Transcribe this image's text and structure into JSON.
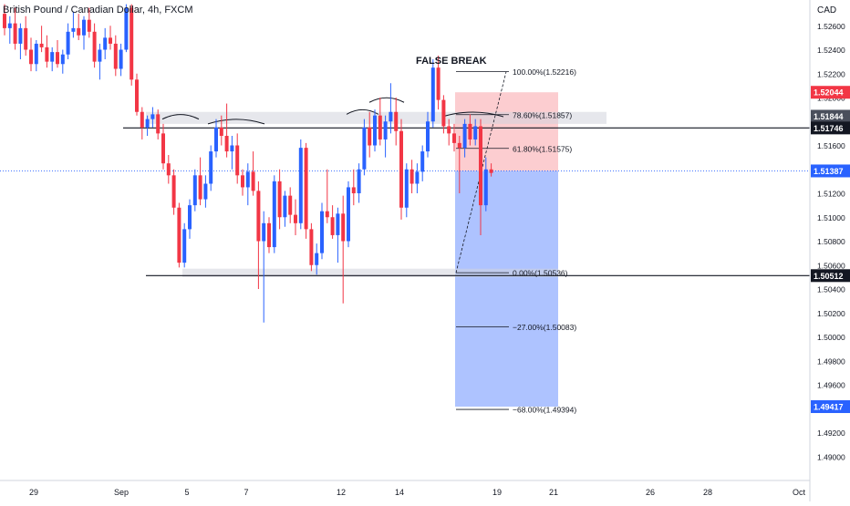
{
  "header": {
    "symbol_title": "British Pound / Canadian Dollar, 4h, FXCM",
    "currency": "CAD"
  },
  "annotations": {
    "false_break": "FALSE BREAK"
  },
  "chart_data": {
    "type": "candlestick",
    "title": "British Pound / Canadian Dollar, 4h, FXCM",
    "ylim": [
      1.488,
      1.528
    ],
    "y_ticks": [
      "1.52600",
      "1.52400",
      "1.52200",
      "1.52000",
      "1.51800",
      "1.51600",
      "1.51200",
      "1.51000",
      "1.50800",
      "1.50600",
      "1.50400",
      "1.50200",
      "1.50000",
      "1.49800",
      "1.49600",
      "1.49200",
      "1.49000"
    ],
    "x_ticks": [
      "29",
      "Sep",
      "5",
      "7",
      "12",
      "14",
      "19",
      "21",
      "26",
      "28",
      "Oct"
    ],
    "price_badges": [
      {
        "label": "1.52044",
        "color": "#f23645"
      },
      {
        "label": "1.51844",
        "color": "#4a4f5c"
      },
      {
        "label": "1.51746",
        "color": "#131722"
      },
      {
        "label": "1.51387",
        "color": "#2962ff"
      },
      {
        "label": "1.50512",
        "color": "#131722"
      },
      {
        "label": "1.49417",
        "color": "#2962ff"
      }
    ],
    "horizontal_levels": [
      1.51746,
      1.50512
    ],
    "zones": [
      {
        "name": "resistance-zone",
        "from": 1.5178,
        "to": 1.5188
      },
      {
        "name": "support-zone",
        "from": 1.505,
        "to": 1.5057
      }
    ],
    "fibonacci": [
      {
        "label": "100.00%(1.52216)",
        "price": 1.52216
      },
      {
        "label": "78.60%(1.51857)",
        "price": 1.51857
      },
      {
        "label": "61.80%(1.51575)",
        "price": 1.51575
      },
      {
        "label": "0.00%(1.50536)",
        "price": 1.50536
      },
      {
        "label": "−27.00%(1.50083)",
        "price": 1.50083
      },
      {
        "label": "−68.00%(1.49394)",
        "price": 1.49394
      }
    ],
    "position": {
      "type": "short",
      "entry": 1.51387,
      "stop": 1.52044,
      "target": 1.49417
    },
    "candles": [
      [
        1.527,
        1.5278,
        1.5252,
        1.5258
      ],
      [
        1.5258,
        1.5268,
        1.5245,
        1.5262
      ],
      [
        1.5262,
        1.5275,
        1.524,
        1.5245
      ],
      [
        1.5245,
        1.5262,
        1.5232,
        1.5258
      ],
      [
        1.5258,
        1.5268,
        1.5235,
        1.524
      ],
      [
        1.524,
        1.525,
        1.5222,
        1.5228
      ],
      [
        1.5228,
        1.5248,
        1.5222,
        1.5245
      ],
      [
        1.5245,
        1.526,
        1.5238,
        1.5242
      ],
      [
        1.5242,
        1.5252,
        1.5225,
        1.523
      ],
      [
        1.523,
        1.5242,
        1.5222,
        1.5238
      ],
      [
        1.5238,
        1.5248,
        1.5225,
        1.5228
      ],
      [
        1.5228,
        1.524,
        1.522,
        1.5236
      ],
      [
        1.5236,
        1.5262,
        1.5232,
        1.5255
      ],
      [
        1.5255,
        1.5272,
        1.525,
        1.5258
      ],
      [
        1.5258,
        1.527,
        1.5248,
        1.5252
      ],
      [
        1.5252,
        1.5268,
        1.524,
        1.5265
      ],
      [
        1.5265,
        1.5275,
        1.525,
        1.5255
      ],
      [
        1.5255,
        1.5262,
        1.5225,
        1.523
      ],
      [
        1.523,
        1.5245,
        1.5215,
        1.524
      ],
      [
        1.524,
        1.5258,
        1.5232,
        1.525
      ],
      [
        1.525,
        1.526,
        1.524,
        1.5245
      ],
      [
        1.5245,
        1.5252,
        1.5218,
        1.5224
      ],
      [
        1.5224,
        1.5245,
        1.5218,
        1.524
      ],
      [
        1.524,
        1.5278,
        1.5238,
        1.5275
      ],
      [
        1.5275,
        1.5278,
        1.521,
        1.5215
      ],
      [
        1.5215,
        1.522,
        1.5185,
        1.5188
      ],
      [
        1.5188,
        1.5192,
        1.5165,
        1.5175
      ],
      [
        1.5175,
        1.5185,
        1.5168,
        1.5182
      ],
      [
        1.5182,
        1.5192,
        1.5175,
        1.5186
      ],
      [
        1.5186,
        1.519,
        1.5165,
        1.517
      ],
      [
        1.517,
        1.5178,
        1.514,
        1.5145
      ],
      [
        1.5145,
        1.5152,
        1.5128,
        1.5135
      ],
      [
        1.5135,
        1.514,
        1.5102,
        1.5108
      ],
      [
        1.5108,
        1.5112,
        1.5058,
        1.5062
      ],
      [
        1.5062,
        1.5095,
        1.5058,
        1.509
      ],
      [
        1.509,
        1.5115,
        1.5082,
        1.511
      ],
      [
        1.511,
        1.514,
        1.5105,
        1.5135
      ],
      [
        1.5135,
        1.515,
        1.511,
        1.5115
      ],
      [
        1.5115,
        1.5135,
        1.5108,
        1.5128
      ],
      [
        1.5128,
        1.516,
        1.5122,
        1.5155
      ],
      [
        1.5155,
        1.5182,
        1.515,
        1.5175
      ],
      [
        1.5175,
        1.5185,
        1.516,
        1.5168
      ],
      [
        1.5168,
        1.5195,
        1.515,
        1.5155
      ],
      [
        1.5155,
        1.5168,
        1.514,
        1.516
      ],
      [
        1.516,
        1.517,
        1.5128,
        1.5135
      ],
      [
        1.5135,
        1.514,
        1.5118,
        1.5125
      ],
      [
        1.5125,
        1.5145,
        1.511,
        1.5138
      ],
      [
        1.5138,
        1.5155,
        1.5118,
        1.5122
      ],
      [
        1.5122,
        1.513,
        1.504,
        1.508
      ],
      [
        1.508,
        1.5105,
        1.5012,
        1.5095
      ],
      [
        1.5095,
        1.51,
        1.507,
        1.5075
      ],
      [
        1.5075,
        1.5135,
        1.507,
        1.513
      ],
      [
        1.513,
        1.514,
        1.509,
        1.51
      ],
      [
        1.51,
        1.5122,
        1.5092,
        1.5118
      ],
      [
        1.5118,
        1.5125,
        1.5095,
        1.5102
      ],
      [
        1.5102,
        1.5115,
        1.5085,
        1.5095
      ],
      [
        1.5095,
        1.5165,
        1.509,
        1.5158
      ],
      [
        1.5158,
        1.5162,
        1.5082,
        1.509
      ],
      [
        1.509,
        1.5095,
        1.5055,
        1.506
      ],
      [
        1.506,
        1.5078,
        1.5052,
        1.507
      ],
      [
        1.507,
        1.5112,
        1.5065,
        1.5105
      ],
      [
        1.5105,
        1.514,
        1.5095,
        1.51
      ],
      [
        1.51,
        1.511,
        1.5082,
        1.5085
      ],
      [
        1.5085,
        1.5108,
        1.5062,
        1.5103
      ],
      [
        1.5103,
        1.5118,
        1.5028,
        1.508
      ],
      [
        1.508,
        1.513,
        1.5075,
        1.5125
      ],
      [
        1.5125,
        1.514,
        1.511,
        1.512
      ],
      [
        1.512,
        1.5145,
        1.5112,
        1.514
      ],
      [
        1.514,
        1.5182,
        1.5135,
        1.5175
      ],
      [
        1.5175,
        1.5188,
        1.515,
        1.516
      ],
      [
        1.516,
        1.519,
        1.5155,
        1.5185
      ],
      [
        1.5185,
        1.52,
        1.516,
        1.5165
      ],
      [
        1.5165,
        1.5185,
        1.515,
        1.518
      ],
      [
        1.518,
        1.5212,
        1.517,
        1.5188
      ],
      [
        1.5188,
        1.52,
        1.516,
        1.5172
      ],
      [
        1.5172,
        1.5182,
        1.5098,
        1.5108
      ],
      [
        1.5108,
        1.5145,
        1.51,
        1.514
      ],
      [
        1.514,
        1.5148,
        1.512,
        1.5128
      ],
      [
        1.5128,
        1.5145,
        1.512,
        1.5138
      ],
      [
        1.5138,
        1.516,
        1.513,
        1.5155
      ],
      [
        1.5155,
        1.5188,
        1.515,
        1.518
      ],
      [
        1.518,
        1.5232,
        1.5175,
        1.5225
      ],
      [
        1.5225,
        1.5235,
        1.519,
        1.5198
      ],
      [
        1.5198,
        1.5202,
        1.517,
        1.5176
      ],
      [
        1.5176,
        1.5182,
        1.516,
        1.517
      ],
      [
        1.517,
        1.5178,
        1.5155,
        1.5162
      ],
      [
        1.5162,
        1.5168,
        1.512,
        1.5158
      ],
      [
        1.5158,
        1.5182,
        1.515,
        1.5178
      ],
      [
        1.5178,
        1.5186,
        1.516,
        1.5165
      ],
      [
        1.5165,
        1.5182,
        1.516,
        1.5176
      ],
      [
        1.5176,
        1.5182,
        1.5085,
        1.511
      ],
      [
        1.511,
        1.515,
        1.5105,
        1.514
      ],
      [
        1.514,
        1.5145,
        1.5134,
        1.5137
      ]
    ]
  }
}
